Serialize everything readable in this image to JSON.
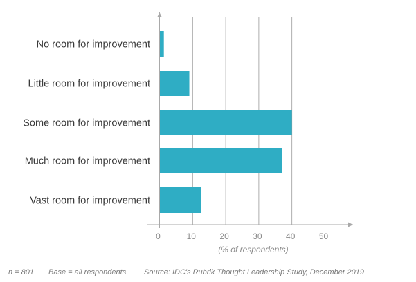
{
  "chart_data": {
    "type": "bar",
    "orientation": "horizontal",
    "categories": [
      "No room for improvement",
      "Little room for improvement",
      "Some room for improvement",
      "Much room for improvement",
      "Vast room for improvement"
    ],
    "values": [
      1.3,
      9,
      40,
      37,
      12.5
    ],
    "xlabel": "(% of respondents)",
    "ylabel": "",
    "xlim": [
      0,
      50
    ],
    "xticks": [
      "0",
      "10",
      "20",
      "30",
      "40",
      "50"
    ],
    "grid": "vertical",
    "bar_color": "#2fadc4",
    "grid_color": "#9a9a9a",
    "axis_color": "#a9a9a9"
  },
  "footer": {
    "n": "n = 801",
    "base": "Base = all respondents",
    "source": "Source: IDC's Rubrik Thought Leadership Study, December 2019"
  }
}
